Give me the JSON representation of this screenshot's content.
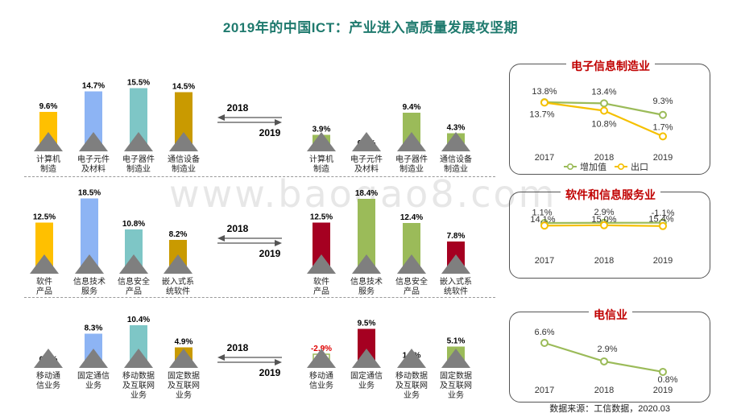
{
  "title": "2019年的中国ICT：产业进入高质量发展攻坚期",
  "watermark": "www.baogao8.com",
  "source": "数据来源：工信数据，2020.03",
  "colors": {
    "yellow": "#ffc000",
    "blue": "#8db4f4",
    "teal": "#7ec6c6",
    "gold": "#c99a00",
    "green": "#9bbb59",
    "red": "#a50021",
    "triangle": "#7f7f7f",
    "negative": "#e00000",
    "line_green": "#9bbb59",
    "line_yellow": "#f5c000"
  },
  "chart_data": [
    {
      "type": "bar",
      "id": "electronics-2018",
      "categories": [
        "计算机\n制造",
        "电子元件\n及材料",
        "电子器件\n制造业",
        "通信设备\n制造业"
      ],
      "values": [
        9.6,
        14.7,
        15.5,
        14.5
      ],
      "labels": [
        "9.6%",
        "14.7%",
        "15.5%",
        "14.5%"
      ]
    },
    {
      "type": "bar",
      "id": "electronics-2019",
      "categories": [
        "计算机\n制造",
        "电子元件\n及材料",
        "电子器件\n制造业",
        "通信设备\n制造业"
      ],
      "values": [
        3.9,
        0.3,
        9.4,
        4.3
      ],
      "labels": [
        "3.9%",
        "0.3%",
        "9.4%",
        "4.3%"
      ]
    },
    {
      "type": "bar",
      "id": "software-2018",
      "categories": [
        "软件\n产品",
        "信息技术\n服务",
        "信息安全\n产品",
        "嵌入式系\n统软件"
      ],
      "values": [
        12.5,
        18.5,
        10.8,
        8.2
      ],
      "labels": [
        "12.5%",
        "18.5%",
        "10.8%",
        "8.2%"
      ]
    },
    {
      "type": "bar",
      "id": "software-2019",
      "categories": [
        "软件\n产品",
        "信息技术\n服务",
        "信息安全\n产品",
        "嵌入式系\n统软件"
      ],
      "values": [
        12.5,
        18.4,
        12.4,
        7.8
      ],
      "labels": [
        "12.5%",
        "18.4%",
        "12.4%",
        "7.8%"
      ]
    },
    {
      "type": "bar",
      "id": "telecom-2018",
      "categories": [
        "移动通\n信业务",
        "固定通信\n业务",
        "移动数据\n及互联网\n业务",
        "固定数据\n及互联网\n业务"
      ],
      "values": [
        0.5,
        8.3,
        10.4,
        4.9
      ],
      "labels": [
        "0.5%",
        "8.3%",
        "10.4%",
        "4.9%"
      ]
    },
    {
      "type": "bar",
      "id": "telecom-2019",
      "categories": [
        "移动通\n信业务",
        "固定通信\n业务",
        "移动数据\n及互联网\n业务",
        "固定数据\n及互联网\n业务"
      ],
      "values": [
        -2.9,
        9.5,
        1.5,
        5.1
      ],
      "labels": [
        "-2.9%",
        "9.5%",
        "1.5%",
        "5.1%"
      ]
    },
    {
      "type": "line",
      "id": "electronics-trend",
      "title": "电子信息制造业",
      "x": [
        "2017",
        "2018",
        "2019"
      ],
      "series": [
        {
          "name": "增加值",
          "values": [
            13.8,
            13.4,
            9.3
          ],
          "labels": [
            "13.8%",
            "13.4%",
            "9.3%"
          ]
        },
        {
          "name": "出口",
          "values": [
            13.7,
            10.8,
            1.7
          ],
          "labels": [
            "13.7%",
            "10.8%",
            "1.7%"
          ]
        }
      ]
    },
    {
      "type": "line",
      "id": "software-trend",
      "title": "软件和信息服务业",
      "x": [
        "2017",
        "2018",
        "2019"
      ],
      "series": [
        {
          "values": [
            14.1,
            15.0,
            15.4
          ],
          "labels": [
            "14.1%",
            "15.0%",
            "15.4%"
          ]
        },
        {
          "values": [
            1.1,
            2.9,
            -1.1
          ],
          "labels": [
            "1.1%",
            "2.9%",
            "-1.1%"
          ]
        }
      ]
    },
    {
      "type": "line",
      "id": "telecom-trend",
      "title": "电信业",
      "x": [
        "2017",
        "2018",
        "2019"
      ],
      "series": [
        {
          "values": [
            6.6,
            2.9,
            0.8
          ],
          "labels": [
            "6.6%",
            "2.9%",
            "0.8%"
          ]
        }
      ]
    }
  ],
  "year_labels": {
    "from": "2018",
    "to": "2019"
  }
}
